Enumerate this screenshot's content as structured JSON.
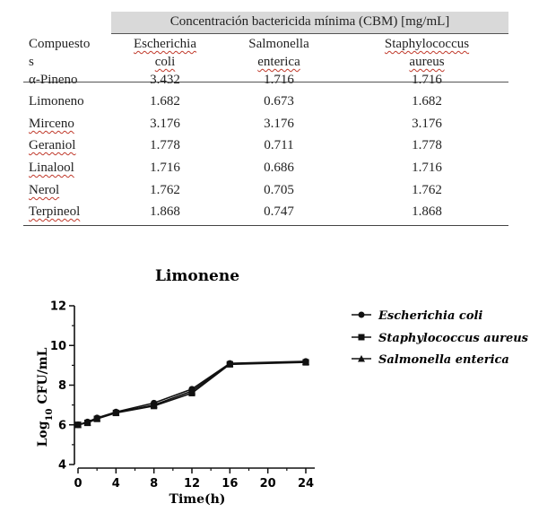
{
  "table": {
    "group_header": "Concentración bactericida mínima (CBM) [mg/mL]",
    "columns": [
      {
        "line1": "Compuesto",
        "line2": "s"
      },
      {
        "line1": "Escherichia",
        "line2": "coli"
      },
      {
        "line1": "Salmonella",
        "line2": "enterica"
      },
      {
        "line1": "Staphylococcus",
        "line2": "aureus"
      }
    ],
    "rows": [
      {
        "name": "α-Pineno",
        "ecoli": "3.432",
        "salmonella": "1.716",
        "staph": "1.716"
      },
      {
        "name": "Limoneno",
        "ecoli": "1.682",
        "salmonella": "0.673",
        "staph": "1.682"
      },
      {
        "name": "Mirceno",
        "ecoli": "3.176",
        "salmonella": "3.176",
        "staph": "3.176"
      },
      {
        "name": "Geraniol",
        "ecoli": "1.778",
        "salmonella": "0.711",
        "staph": "1.778"
      },
      {
        "name": "Linalool",
        "ecoli": "1.716",
        "salmonella": "0.686",
        "staph": "1.716"
      },
      {
        "name": "Nerol",
        "ecoli": "1.762",
        "salmonella": "0.705",
        "staph": "1.762"
      },
      {
        "name": "Terpineol",
        "ecoli": "1.868",
        "salmonella": "0.747",
        "staph": "1.868"
      }
    ]
  },
  "chart_data": {
    "type": "line",
    "title": "Limonene",
    "xlabel": "Time(h)",
    "ylabel": "Log10 CFU/mL",
    "ylabel_main": "Log",
    "ylabel_sub": "10",
    "ylabel_rest": " CFU/mL",
    "xlim": [
      0,
      24
    ],
    "ylim": [
      4,
      12
    ],
    "xticks": [
      "0",
      "4",
      "8",
      "12",
      "16",
      "20",
      "24"
    ],
    "yticks": [
      "4",
      "6",
      "8",
      "10",
      "12"
    ],
    "legend_position": "right",
    "series": [
      {
        "name": "Escherichia coli",
        "marker": "circle",
        "x": [
          0,
          1,
          2,
          4,
          8,
          12,
          16,
          24
        ],
        "y": [
          6.0,
          6.15,
          6.35,
          6.65,
          7.1,
          7.8,
          9.1,
          9.2
        ]
      },
      {
        "name": "Staphylococcus aureus",
        "marker": "square",
        "x": [
          0,
          1,
          2,
          4,
          8,
          12,
          16,
          24
        ],
        "y": [
          6.0,
          6.1,
          6.3,
          6.6,
          6.95,
          7.6,
          9.05,
          9.15
        ]
      },
      {
        "name": "Salmonella enterica",
        "marker": "triangle",
        "x": [
          0,
          1,
          2,
          4,
          8,
          12,
          16,
          24
        ],
        "y": [
          6.0,
          6.12,
          6.32,
          6.62,
          7.0,
          7.7,
          9.08,
          9.18
        ]
      }
    ]
  }
}
